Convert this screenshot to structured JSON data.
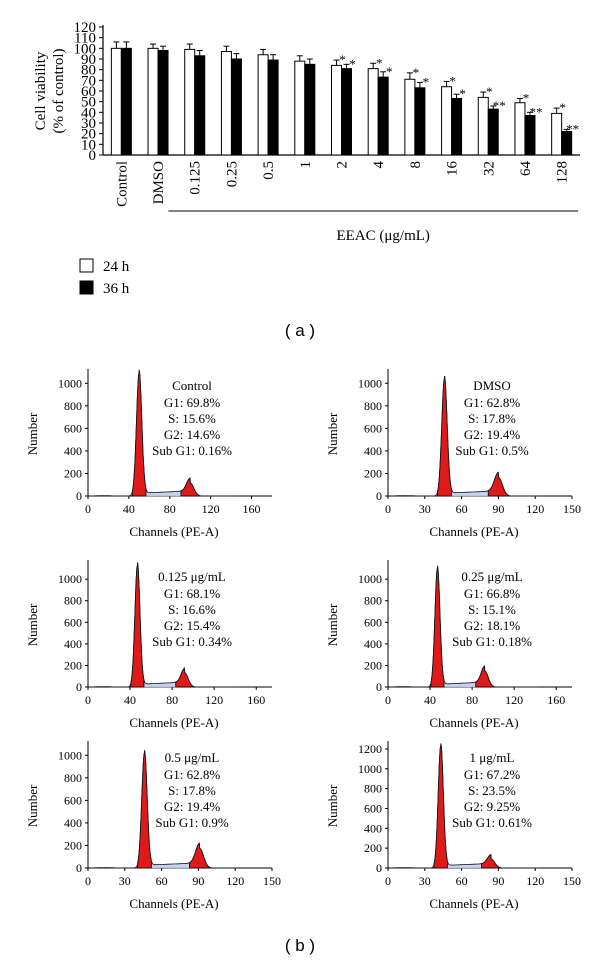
{
  "panel_labels": [
    "( a )",
    "( b )"
  ],
  "chart_data": [
    {
      "type": "bar",
      "panel": "a",
      "categories": [
        "Control",
        "DMSO",
        "0.125",
        "0.25",
        "0.5",
        "1",
        "2",
        "4",
        "8",
        "16",
        "32",
        "64",
        "128"
      ],
      "group_label": "EEAC (μg/mL)",
      "xlabel": "",
      "ylabel": "Cell viability\n(% of control)",
      "ylim": [
        0,
        120
      ],
      "yticks": [
        "0",
        "10",
        "20",
        "30",
        "40",
        "50",
        "60",
        "70",
        "80",
        "90",
        "100",
        "110",
        "120"
      ],
      "legend": {
        "position": "bottom-left",
        "entries": [
          "24 h",
          "36 h"
        ]
      },
      "series": [
        {
          "name": "24 h",
          "color": "#ffffff",
          "values": [
            100,
            100,
            99,
            97,
            94,
            88,
            84,
            81,
            71,
            64,
            54,
            49,
            39
          ],
          "errors": [
            6,
            4,
            5,
            5,
            5,
            5,
            5,
            5,
            6,
            5,
            5,
            4,
            5
          ],
          "significance": [
            "",
            "",
            "",
            "",
            "",
            "",
            "*",
            "*",
            "*",
            "*",
            "*",
            "*",
            "*"
          ]
        },
        {
          "name": "36 h",
          "color": "#000000",
          "values": [
            100,
            98,
            93,
            90,
            89,
            85,
            81,
            73,
            63,
            53,
            43,
            37,
            22
          ],
          "errors": [
            6,
            4,
            5,
            5,
            5,
            5,
            4,
            5,
            5,
            4,
            3,
            3,
            2
          ],
          "significance": [
            "",
            "",
            "",
            "",
            "",
            "",
            "*",
            "*",
            "*",
            "*",
            "**",
            "**",
            "**"
          ]
        }
      ]
    },
    {
      "type": "histogram",
      "panel": "b",
      "title": "Control",
      "stats": [
        "G1: 69.8%",
        "S: 15.6%",
        "G2: 14.6%",
        "Sub G1: 0.16%"
      ],
      "xlabel": "Channels (PE-A)",
      "ylabel": "Number",
      "xlim": [
        0,
        180
      ],
      "ylim": [
        0,
        1100
      ],
      "xticks": [
        "0",
        "40",
        "80",
        "120",
        "160"
      ],
      "yticks": [
        "0",
        "200",
        "400",
        "600",
        "800",
        "1000"
      ],
      "g1_peak": {
        "channel": 50,
        "height": 1090,
        "width": 2.6
      },
      "g2_peak": {
        "channel": 100,
        "height": 115,
        "width": 3.5
      }
    },
    {
      "type": "histogram",
      "panel": "b",
      "title": "DMSO",
      "stats": [
        "G1: 62.8%",
        "S: 17.8%",
        "G2: 19.4%",
        "Sub G1: 0.5%"
      ],
      "xlabel": "Channels (PE-A)",
      "ylabel": "Number",
      "xlim": [
        0,
        150
      ],
      "ylim": [
        0,
        1100
      ],
      "xticks": [
        "0",
        "30",
        "60",
        "90",
        "120",
        "150"
      ],
      "yticks": [
        "0",
        "200",
        "400",
        "600",
        "800",
        "1000"
      ],
      "g1_peak": {
        "channel": 46,
        "height": 1040,
        "width": 2.2
      },
      "g2_peak": {
        "channel": 90,
        "height": 165,
        "width": 3.2
      }
    },
    {
      "type": "histogram",
      "panel": "b",
      "title": "0.125 μg/mL",
      "stats": [
        "G1: 68.1%",
        "S: 16.6%",
        "G2: 15.4%",
        "Sub G1: 0.34%"
      ],
      "xlabel": "Channels (PE-A)",
      "ylabel": "Number",
      "xlim": [
        0,
        175
      ],
      "ylim": [
        0,
        1150
      ],
      "xticks": [
        "0",
        "40",
        "80",
        "120",
        "160"
      ],
      "yticks": [
        "0",
        "200",
        "400",
        "600",
        "800",
        "1000"
      ],
      "g1_peak": {
        "channel": 47,
        "height": 1130,
        "width": 2.4
      },
      "g2_peak": {
        "channel": 92,
        "height": 130,
        "width": 3.3
      }
    },
    {
      "type": "histogram",
      "panel": "b",
      "title": "0.25 μg/mL",
      "stats": [
        "G1: 66.8%",
        "S: 15.1%",
        "G2: 18.1%",
        "Sub G1: 0.18%"
      ],
      "xlabel": "Channels (PE-A)",
      "ylabel": "Number",
      "xlim": [
        0,
        175
      ],
      "ylim": [
        0,
        1150
      ],
      "xticks": [
        "0",
        "40",
        "80",
        "120",
        "160"
      ],
      "yticks": [
        "0",
        "200",
        "400",
        "600",
        "800",
        "1000"
      ],
      "g1_peak": {
        "channel": 47,
        "height": 1100,
        "width": 2.4
      },
      "g2_peak": {
        "channel": 92,
        "height": 150,
        "width": 3.3
      }
    },
    {
      "type": "histogram",
      "panel": "b",
      "title": "0.5 μg/mL",
      "stats": [
        "G1: 62.8%",
        "S: 17.8%",
        "G2: 19.4%",
        "Sub G1: 0.9%"
      ],
      "xlabel": "Channels (PE-A)",
      "ylabel": "Number",
      "xlim": [
        0,
        150
      ],
      "ylim": [
        0,
        1100
      ],
      "xticks": [
        "0",
        "30",
        "60",
        "90",
        "120",
        "150"
      ],
      "yticks": [
        "0",
        "200",
        "400",
        "600",
        "800",
        "1000"
      ],
      "g1_peak": {
        "channel": 46,
        "height": 1020,
        "width": 2.2
      },
      "g2_peak": {
        "channel": 91,
        "height": 175,
        "width": 3.2
      }
    },
    {
      "type": "histogram",
      "panel": "b",
      "title": "1 μg/mL",
      "stats": [
        "G1: 67.2%",
        "S: 23.5%",
        "G2: 9.25%",
        "Sub G1: 0.61%"
      ],
      "xlabel": "Channels (PE-A)",
      "ylabel": "Number",
      "xlim": [
        0,
        150
      ],
      "ylim": [
        0,
        1250
      ],
      "xticks": [
        "0",
        "30",
        "60",
        "90",
        "120",
        "150"
      ],
      "yticks": [
        "0",
        "200",
        "400",
        "600",
        "800",
        "1000",
        "1200"
      ],
      "g1_peak": {
        "channel": 43,
        "height": 1230,
        "width": 2.1
      },
      "g2_peak": {
        "channel": 84,
        "height": 90,
        "width": 3.0
      }
    }
  ]
}
